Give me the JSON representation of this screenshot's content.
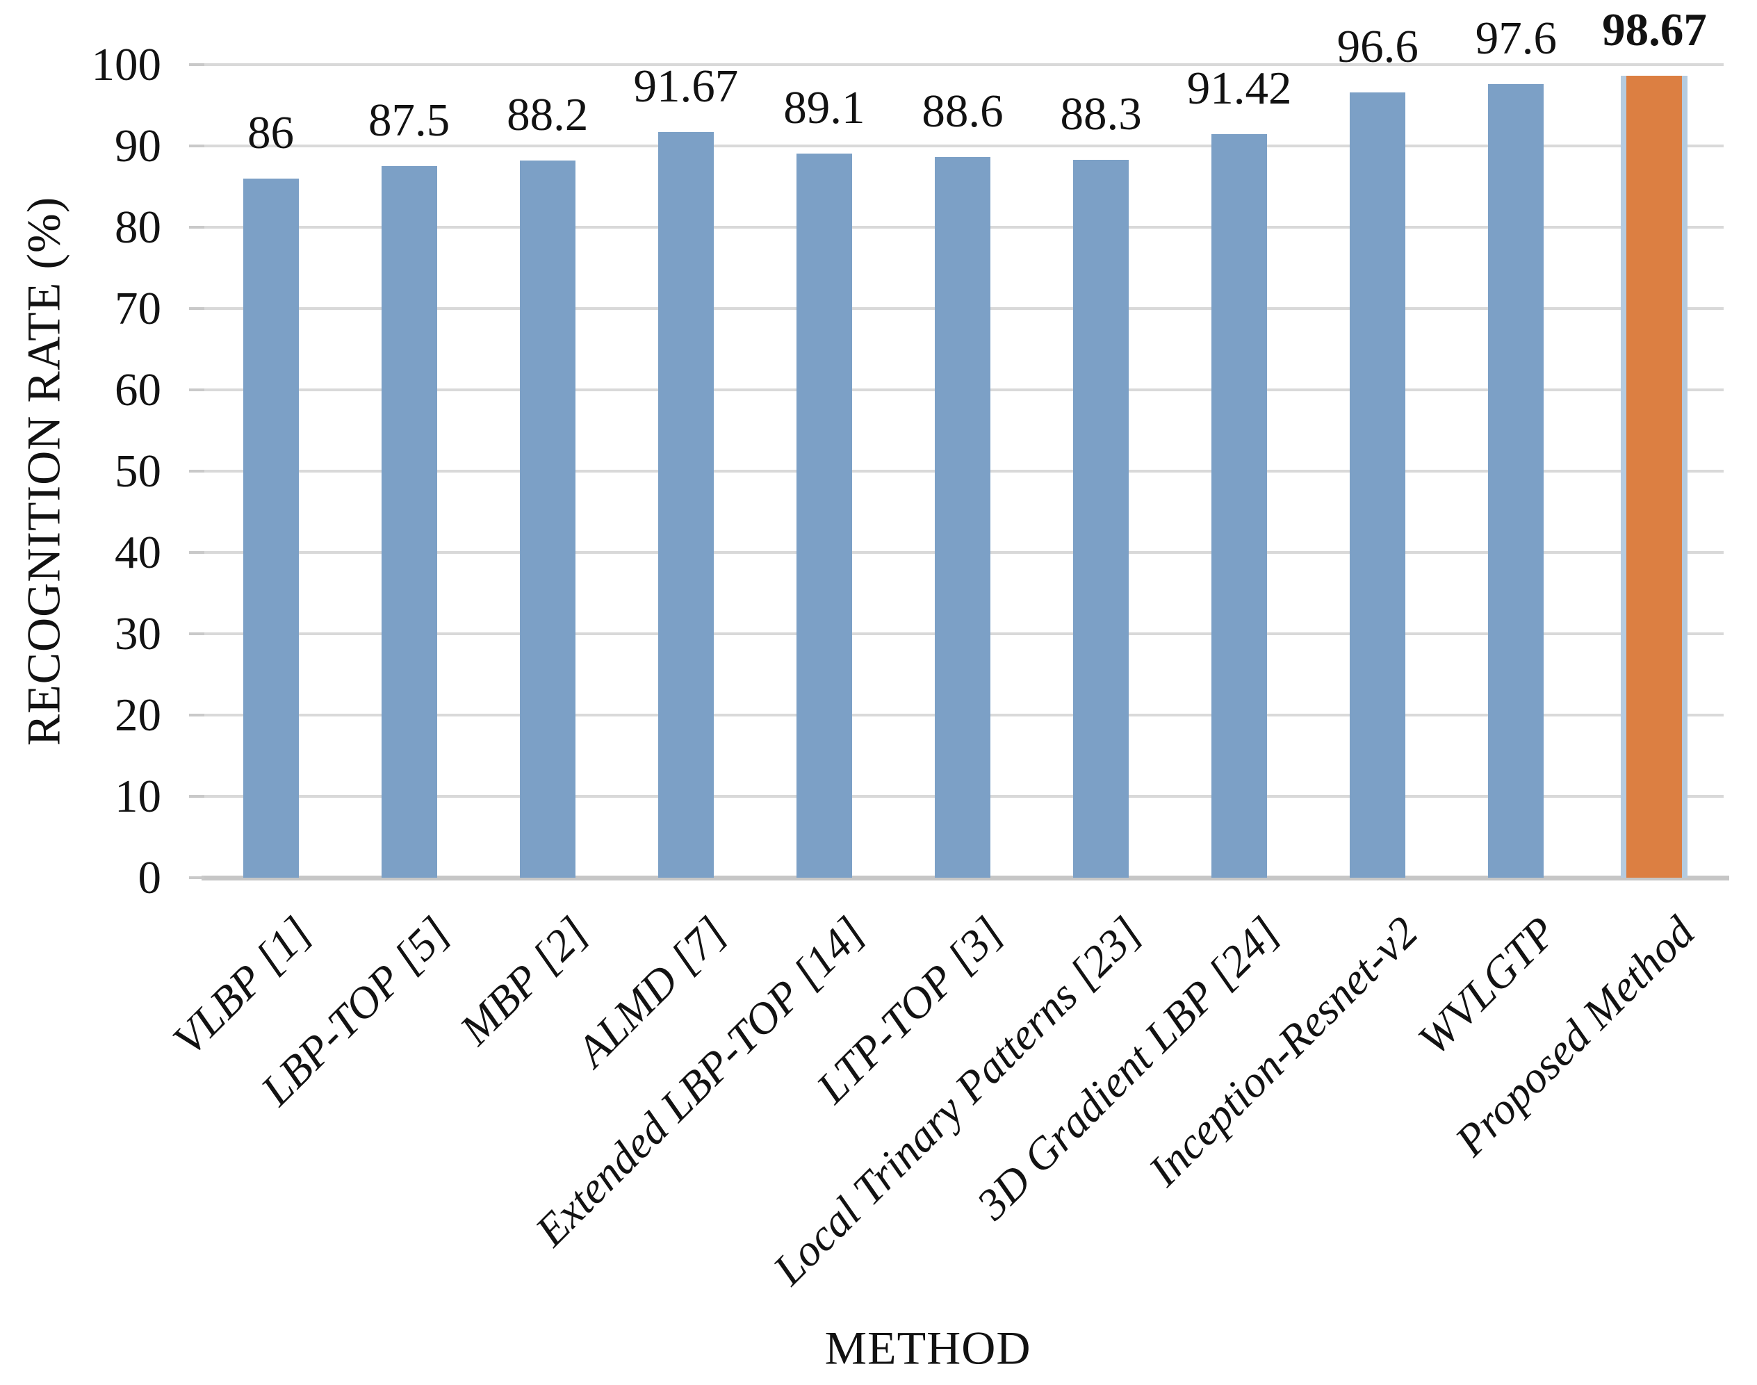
{
  "figure": {
    "background": "#ffffff"
  },
  "chart_data": {
    "type": "bar",
    "title": "",
    "xlabel": "METHOD",
    "ylabel": "RECOGNITION RATE (%)",
    "categories": [
      "VLBP [1]",
      "LBP-TOP [5]",
      "MBP [2]",
      "ALMD [7]",
      "Extended LBP-TOP [14]",
      "LTP-TOP [3]",
      "Local Trinary Patterns [23]",
      "3D Gradient LBP [24]",
      "Inception-Resnet-v2",
      "WVLGTP",
      "Proposed Method"
    ],
    "values": [
      86,
      87.5,
      88.2,
      91.67,
      89.1,
      88.6,
      88.3,
      91.42,
      96.6,
      97.6,
      98.67
    ],
    "data_labels": [
      "86",
      "87.5",
      "88.2",
      "91.67",
      "89.1",
      "88.6",
      "88.3",
      "91.42",
      "96.6",
      "97.6",
      "98.67"
    ],
    "ylim": [
      0,
      100
    ],
    "yticks": [
      0,
      10,
      20,
      30,
      40,
      50,
      60,
      70,
      80,
      90,
      100
    ],
    "grid": "horizontal",
    "legend": "none",
    "bar_color": "#7CA0C6",
    "highlight_index": 10,
    "highlight_color": "#DC7F42",
    "highlight_border_color": "#B5CBDF",
    "highlight_label_bold": true,
    "gridline_color": "#D9D9D9",
    "axisline_color": "#C6C6C6",
    "tick_color": "#C9C9C9",
    "text_color": "#121212"
  }
}
